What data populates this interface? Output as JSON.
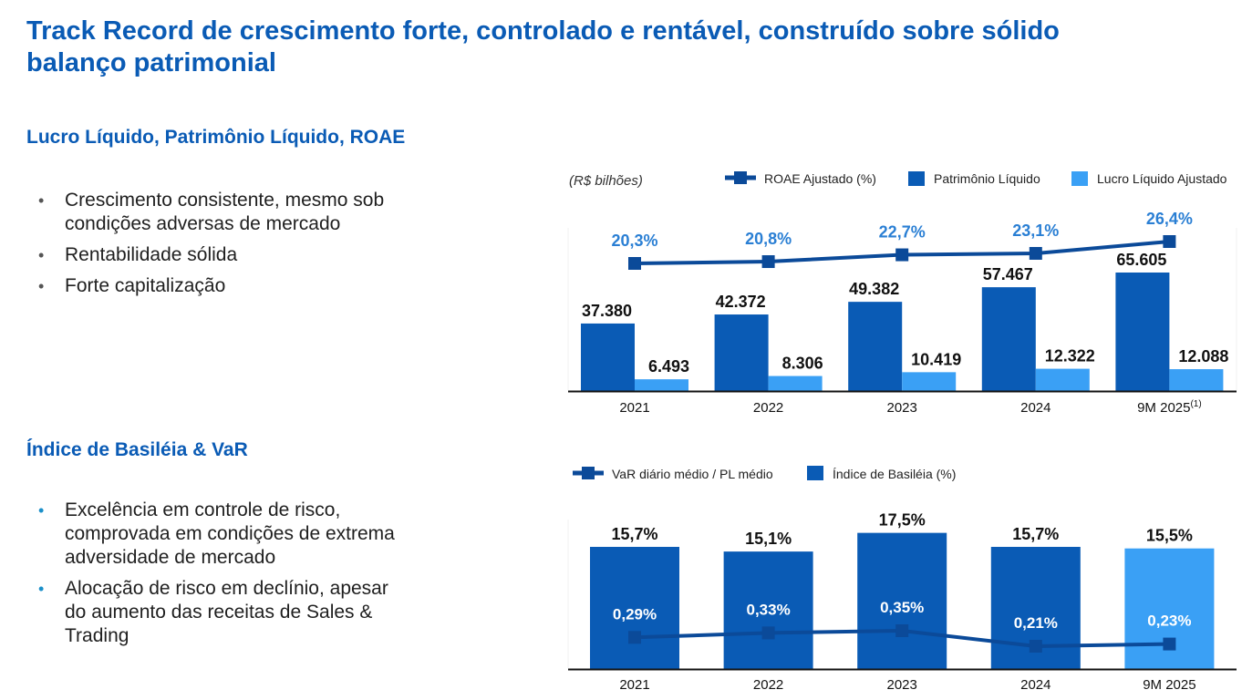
{
  "page": {
    "title": "Track Record de crescimento forte, controlado e rentável, construído sobre sólido balanço patrimonial"
  },
  "section1": {
    "title": "Lucro Líquido, Patrimônio Líquido, ROAE",
    "bullets": [
      "Crescimento consistente, mesmo sob condições adversas de mercado",
      "Rentabilidade sólida",
      "Forte capitalização"
    ]
  },
  "section2": {
    "title": "Índice de Basiléia & VaR",
    "bullets": [
      "Excelência em controle de risco, comprovada em condições de extrema adversidade de mercado",
      "Alocação de risco em declínio, apesar do aumento das receitas de Sales & Trading"
    ]
  },
  "colors": {
    "dark_blue": "#0a5bb5",
    "light_blue": "#3aa0f5",
    "line_blue": "#0b4a99",
    "pct_label": "#2a7fd4"
  },
  "chart_data": [
    {
      "type": "bar",
      "unit_label": "(R$ bilhões)",
      "categories": [
        "2021",
        "2022",
        "2023",
        "2024",
        "9M 2025"
      ],
      "category_footnotes": [
        "",
        "",
        "",
        "",
        "(1)"
      ],
      "series": [
        {
          "name": "Patrimônio Líquido",
          "kind": "bar",
          "values": [
            37380,
            42372,
            49382,
            57467,
            65605
          ],
          "labels": [
            "37.380",
            "42.372",
            "49.382",
            "57.467",
            "65.605"
          ]
        },
        {
          "name": "Lucro Líquido Ajustado",
          "kind": "bar",
          "values": [
            6493,
            8306,
            10419,
            12322,
            12088
          ],
          "labels": [
            "6.493",
            "8.306",
            "10.419",
            "12.322",
            "12.088"
          ]
        },
        {
          "name": "ROAE Ajustado (%)",
          "kind": "line",
          "values": [
            20.3,
            20.8,
            22.7,
            23.1,
            26.4
          ],
          "labels": [
            "20,3%",
            "20,8%",
            "22,7%",
            "23,1%",
            "26,4%"
          ]
        }
      ],
      "legend": [
        "ROAE Ajustado (%)",
        "Patrimônio Líquido",
        "Lucro Líquido Ajustado"
      ],
      "legend_position": "top-right",
      "grid": false,
      "title": "",
      "xlabel": "",
      "ylabel": ""
    },
    {
      "type": "bar",
      "categories": [
        "2021",
        "2022",
        "2023",
        "2024",
        "9M 2025"
      ],
      "series": [
        {
          "name": "Índice de Basiléia (%)",
          "kind": "bar",
          "values": [
            15.7,
            15.1,
            17.5,
            15.7,
            15.5
          ],
          "labels": [
            "15,7%",
            "15,1%",
            "17,5%",
            "15,7%",
            "15,5%"
          ],
          "highlight_last": true
        },
        {
          "name": "VaR diário médio / PL médio",
          "kind": "line",
          "values": [
            0.29,
            0.33,
            0.35,
            0.21,
            0.23
          ],
          "labels": [
            "0,29%",
            "0,33%",
            "0,35%",
            "0,21%",
            "0,23%"
          ]
        }
      ],
      "legend": [
        "VaR diário médio / PL médio",
        "Índice de Basiléia (%)"
      ],
      "legend_position": "top-left",
      "grid": false,
      "title": "",
      "xlabel": "",
      "ylabel": ""
    }
  ]
}
